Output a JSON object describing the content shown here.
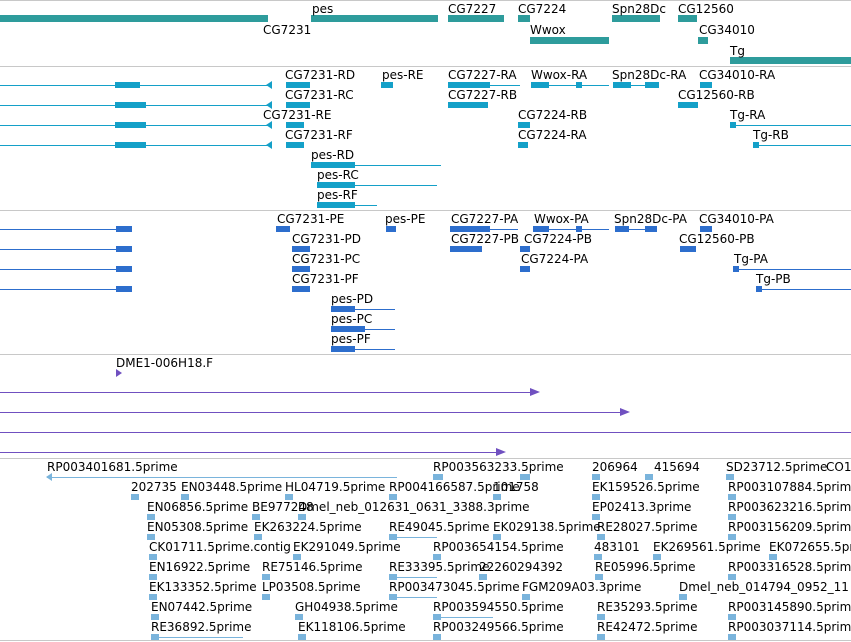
{
  "colors": {
    "gene": "#2e9c9c",
    "transcript_flybase": "#14a0c8",
    "transcript_refseq": "#2d6ecd",
    "clone": "#7050c0",
    "est": "#7ab4dc",
    "divider": "#c8c8c8"
  },
  "tracks": {
    "genes": {
      "labels": [
        "pes",
        "CG7227",
        "CG7224",
        "Spn28Dc",
        "CG12560",
        "CG7231",
        "Wwox",
        "CG34010",
        "Tg"
      ]
    },
    "flybase_transcripts": {
      "labels": [
        "CG7231-RD",
        "pes-RE",
        "CG7227-RA",
        "Wwox-RA",
        "Spn28Dc-RA",
        "CG34010-RA",
        "CG7231-RC",
        "CG7227-RB",
        "CG12560-RB",
        "CG7231-RE",
        "CG7224-RB",
        "Tg-RA",
        "CG7231-RF",
        "CG7224-RA",
        "Tg-RB",
        "pes-RD",
        "pes-RC",
        "pes-RF"
      ]
    },
    "refseq_transcripts": {
      "labels": [
        "CG7231-PE",
        "pes-PE",
        "CG7227-PA",
        "Wwox-PA",
        "Spn28Dc-PA",
        "CG34010-PA",
        "CG7231-PD",
        "CG7227-PB",
        "CG7224-PB",
        "CG12560-PB",
        "CG7231-PC",
        "CG7224-PA",
        "Tg-PA",
        "CG7231-PF",
        "Tg-PB",
        "pes-PD",
        "pes-PC",
        "pes-PF"
      ]
    },
    "clones": {
      "labels": [
        "DME1-006H18.F"
      ]
    },
    "ests": {
      "labels": [
        "RP003401681.5prime",
        "RP003563233.5prime",
        "206964",
        "415694",
        "SD23712.5prime",
        "CO1",
        "202735",
        "EN03448.5prime",
        "HL04719.5prime",
        "RP004166587.5prime",
        "101758",
        "EK159526.5prime",
        "RP003107884.5prime",
        "EN06856.5prime",
        "BE977248",
        "Dmel_neb_012631_0631_3388.3prime",
        "EP02413.3prime",
        "RP003623216.5prime",
        "EN05308.5prime",
        "EK263224.5prime",
        "RE49045.5prime",
        "EK029138.5prime",
        "RE28027.5prime",
        "RP003156209.5prime",
        "CK01711.5prime.contig",
        "EK291049.5prime",
        "RP003654154.5prime",
        "483101",
        "EK269561.5prime",
        "EK072655.5prime",
        "EN16922.5prime",
        "RE75146.5prime",
        "RE33395.5prime",
        "22260294392",
        "RE05996.5prime",
        "RP003316528.5prime",
        "EK133352.5prime",
        "LP03508.5prime",
        "RP003473045.5prime",
        "FGM209A03.3prime",
        "Dmel_neb_014794_0952_11",
        "EN07442.5prime",
        "GH04938.5prime",
        "RP003594550.5prime",
        "RE35293.5prime",
        "RP003145890.5prime",
        "RE36892.5prime",
        "EK118106.5prime",
        "RP003249566.5prime",
        "RE42472.5prime",
        "RP003037114.5prime"
      ]
    }
  }
}
